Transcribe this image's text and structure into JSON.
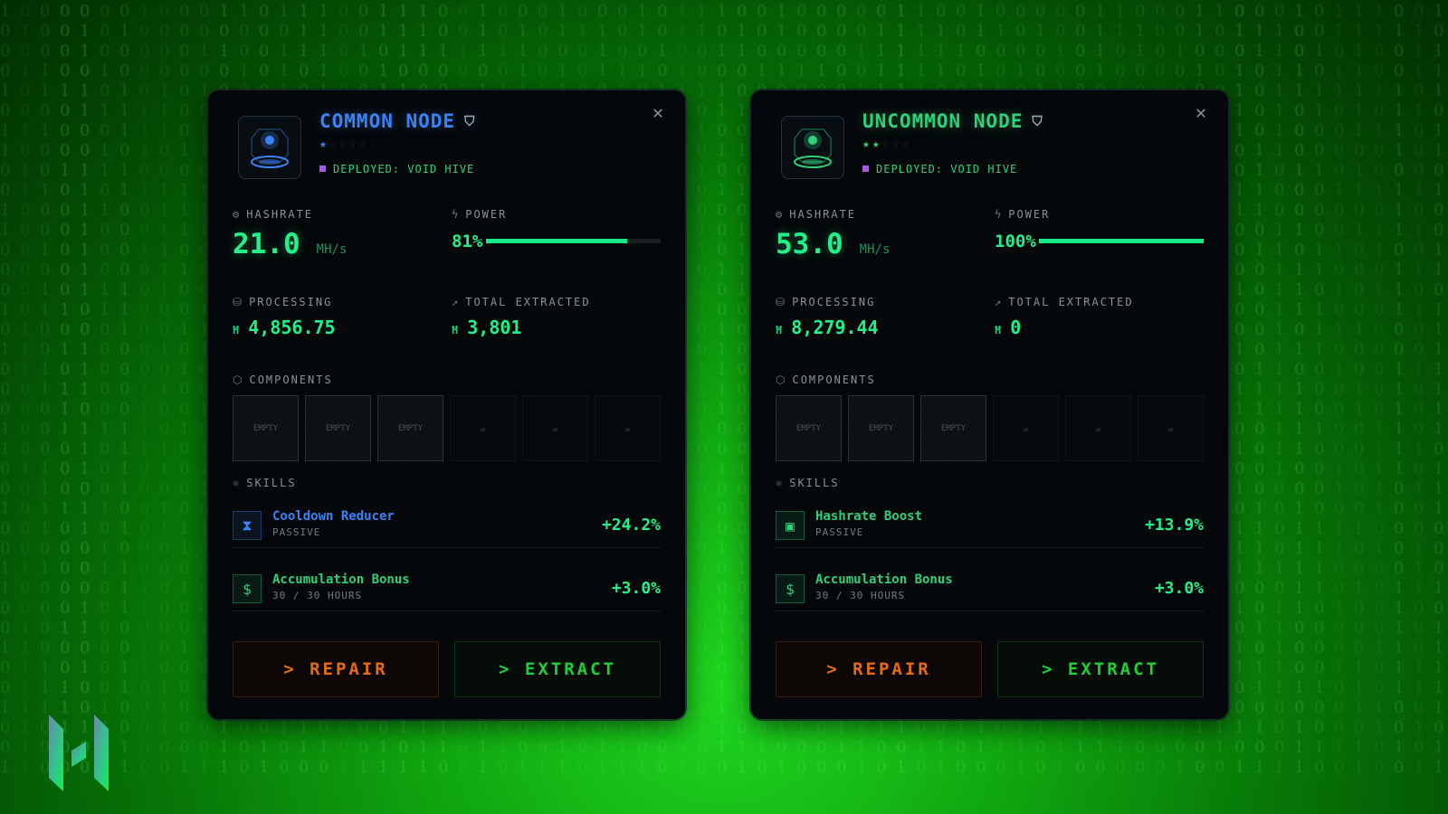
{
  "cards": [
    {
      "title": "COMMON NODE",
      "accent": "#3b82f6",
      "rating": 1,
      "rating_max": 5,
      "deployed": "DEPLOYED: VOID HIVE",
      "hashrate": {
        "label": "HASHRATE",
        "value": "21.0",
        "unit": "MH/s"
      },
      "power": {
        "label": "POWER",
        "value": "81%",
        "percent": 81
      },
      "processing": {
        "label": "PROCESSING",
        "value": "4,856.75"
      },
      "total_extracted": {
        "label": "TOTAL EXTRACTED",
        "value": "3,801"
      },
      "components": {
        "label": "COMPONENTS",
        "slots": [
          "EMPTY",
          "EMPTY",
          "EMPTY",
          "locked",
          "locked",
          "locked"
        ]
      },
      "skills": {
        "label": "SKILLS",
        "items": [
          {
            "name": "Cooldown Reducer",
            "sub": "PASSIVE",
            "value": "+24.2%",
            "icon": "hourglass-icon",
            "color": "#3b82f6"
          },
          {
            "name": "Accumulation Bonus",
            "sub": "30 / 30 HOURS",
            "value": "+3.0%",
            "icon": "dollar-icon",
            "color": "#2fd07a"
          }
        ]
      },
      "repair_label": "> REPAIR",
      "extract_label": "> EXTRACT"
    },
    {
      "title": "UNCOMMON NODE",
      "accent": "#2fd07a",
      "rating": 2,
      "rating_max": 5,
      "deployed": "DEPLOYED: VOID HIVE",
      "hashrate": {
        "label": "HASHRATE",
        "value": "53.0",
        "unit": "MH/s"
      },
      "power": {
        "label": "POWER",
        "value": "100%",
        "percent": 100
      },
      "processing": {
        "label": "PROCESSING",
        "value": "8,279.44"
      },
      "total_extracted": {
        "label": "TOTAL EXTRACTED",
        "value": "0"
      },
      "components": {
        "label": "COMPONENTS",
        "slots": [
          "EMPTY",
          "EMPTY",
          "EMPTY",
          "locked",
          "locked",
          "locked"
        ]
      },
      "skills": {
        "label": "SKILLS",
        "items": [
          {
            "name": "Hashrate Boost",
            "sub": "PASSIVE",
            "value": "+13.9%",
            "icon": "chip-icon",
            "color": "#2fd07a"
          },
          {
            "name": "Accumulation Bonus",
            "sub": "30 / 30 HOURS",
            "value": "+3.0%",
            "icon": "dollar-icon",
            "color": "#2fd07a"
          }
        ]
      },
      "repair_label": "> REPAIR",
      "extract_label": "> EXTRACT"
    }
  ],
  "currency_symbol": "Ħ"
}
